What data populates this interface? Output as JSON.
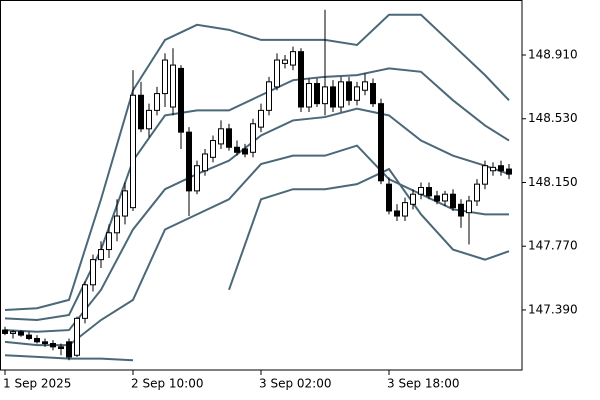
{
  "chart_data": {
    "type": "candlestick",
    "categories": [
      "1 Sep 2025",
      null,
      null,
      null,
      null,
      null,
      null,
      null,
      null,
      null,
      null,
      null,
      null,
      null,
      null,
      null,
      "2 Sep 10:00",
      null,
      null,
      null,
      null,
      null,
      null,
      null,
      null,
      null,
      null,
      null,
      null,
      null,
      null,
      null,
      "3 Sep 02:00",
      null,
      null,
      null,
      null,
      null,
      null,
      null,
      null,
      null,
      null,
      null,
      null,
      null,
      null,
      null,
      "3 Sep 18:00",
      null,
      null,
      null,
      null,
      null,
      null,
      null,
      null,
      null,
      null,
      null,
      null,
      null,
      null,
      null
    ],
    "open": [
      147.27,
      147.25,
      147.26,
      147.24,
      147.22,
      147.2,
      147.19,
      147.17,
      147.2,
      147.12,
      147.34,
      147.54,
      147.69,
      147.75,
      147.85,
      147.95,
      148.0,
      148.67,
      148.47,
      148.58,
      148.68,
      148.6,
      148.83,
      148.45,
      148.1,
      148.22,
      148.3,
      148.38,
      148.47,
      148.36,
      148.35,
      148.33,
      148.48,
      148.58,
      148.72,
      148.86,
      148.85,
      148.93,
      148.6,
      148.74,
      148.62,
      148.72,
      148.6,
      148.75,
      148.64,
      148.7,
      148.74,
      148.62,
      148.14,
      147.98,
      147.95,
      148.02,
      148.08,
      148.12,
      148.07,
      148.04,
      148.08,
      148.02,
      147.97,
      148.04,
      148.14,
      148.22,
      148.25,
      148.23
    ],
    "high": [
      147.29,
      147.27,
      147.27,
      147.26,
      147.24,
      147.22,
      147.21,
      147.19,
      147.22,
      147.35,
      147.56,
      147.72,
      147.8,
      147.9,
      148.05,
      148.15,
      148.82,
      148.75,
      148.62,
      148.72,
      148.92,
      148.95,
      148.85,
      148.48,
      148.28,
      148.35,
      148.43,
      148.52,
      148.5,
      148.4,
      148.38,
      148.53,
      148.62,
      148.78,
      148.92,
      148.91,
      148.96,
      148.95,
      148.77,
      148.77,
      149.18,
      148.76,
      148.78,
      148.78,
      148.75,
      148.8,
      148.77,
      148.65,
      148.18,
      148.02,
      148.06,
      148.11,
      148.15,
      148.15,
      148.1,
      148.1,
      148.11,
      148.05,
      148.07,
      148.17,
      148.28,
      148.27,
      148.28,
      148.26
    ],
    "low": [
      147.24,
      147.22,
      147.23,
      147.21,
      147.19,
      147.17,
      147.15,
      147.12,
      147.09,
      147.11,
      147.31,
      147.5,
      147.64,
      147.7,
      147.8,
      147.9,
      147.98,
      148.45,
      148.42,
      148.55,
      148.6,
      148.55,
      148.35,
      147.95,
      148.08,
      148.19,
      148.27,
      148.35,
      148.34,
      148.31,
      148.3,
      148.3,
      148.45,
      148.55,
      148.7,
      148.83,
      148.82,
      148.57,
      148.57,
      148.6,
      148.55,
      148.57,
      148.57,
      148.61,
      148.61,
      148.67,
      148.6,
      148.14,
      147.96,
      147.92,
      147.92,
      147.99,
      148.05,
      148.05,
      148.02,
      148.01,
      147.98,
      147.88,
      147.78,
      148.01,
      148.11,
      148.19,
      148.19,
      148.17
    ],
    "close": [
      147.25,
      147.26,
      147.24,
      147.22,
      147.2,
      147.19,
      147.17,
      147.16,
      147.11,
      147.34,
      147.54,
      147.69,
      147.75,
      147.85,
      147.95,
      148.1,
      148.67,
      148.47,
      148.58,
      148.68,
      148.88,
      148.85,
      148.45,
      148.1,
      148.25,
      148.32,
      148.4,
      148.47,
      148.36,
      148.33,
      148.32,
      148.5,
      148.58,
      148.75,
      148.88,
      148.88,
      148.93,
      148.6,
      148.74,
      148.62,
      148.72,
      148.6,
      148.75,
      148.64,
      148.72,
      148.75,
      148.62,
      148.16,
      147.98,
      147.95,
      148.03,
      148.08,
      148.12,
      148.07,
      148.04,
      148.08,
      148.0,
      147.95,
      148.04,
      148.14,
      148.25,
      148.24,
      148.22,
      148.2
    ],
    "bands": [
      {
        "color": "#4a6878",
        "x": [
          0,
          4,
          8,
          12,
          16,
          20,
          24,
          28,
          32,
          36,
          40,
          44,
          48,
          52,
          56,
          60,
          63
        ],
        "values": [
          147.39,
          147.4,
          147.45,
          148.05,
          148.7,
          149.0,
          149.09,
          149.06,
          149.0,
          149.0,
          149.0,
          148.97,
          149.15,
          149.15,
          148.97,
          148.79,
          148.64
        ]
      },
      {
        "color": "#4a6878",
        "x": [
          0,
          4,
          8,
          12,
          16,
          20,
          24,
          28,
          32,
          36,
          40,
          44,
          48,
          52,
          56,
          60,
          63
        ],
        "values": [
          147.34,
          147.33,
          147.36,
          147.75,
          148.28,
          148.55,
          148.58,
          148.58,
          148.67,
          148.76,
          148.78,
          148.79,
          148.83,
          148.81,
          148.64,
          148.49,
          148.4
        ]
      },
      {
        "color": "#4a6878",
        "x": [
          0,
          4,
          8,
          12,
          16,
          20,
          24,
          28,
          32,
          36,
          40,
          44,
          48,
          52,
          56,
          60,
          63
        ],
        "values": [
          147.27,
          147.26,
          147.27,
          147.51,
          147.87,
          148.11,
          148.2,
          148.28,
          148.43,
          148.52,
          148.54,
          148.59,
          148.55,
          148.4,
          148.31,
          148.25,
          148.2
        ]
      },
      {
        "color": "#4a6878",
        "x": [
          0,
          4,
          8,
          12,
          16,
          20,
          24,
          28,
          32,
          36,
          40,
          44,
          48,
          52,
          56,
          60,
          63
        ],
        "values": [
          147.2,
          147.18,
          147.18,
          147.33,
          147.45,
          147.87,
          147.96,
          148.05,
          148.26,
          148.31,
          148.31,
          148.37,
          148.17,
          148.08,
          147.99,
          147.96,
          147.96
        ]
      },
      {
        "color": "#4a6878",
        "x": [
          0,
          4,
          8,
          12,
          16,
          20,
          24,
          28,
          32,
          36,
          40,
          44,
          48,
          52,
          56,
          60,
          63
        ],
        "values": [
          147.12,
          147.11,
          147.1,
          147.1,
          147.09,
          null,
          null,
          147.51,
          148.05,
          148.11,
          148.11,
          148.14,
          148.23,
          147.96,
          147.75,
          147.69,
          147.74
        ]
      }
    ],
    "ylim": [
      147.032,
      149.238
    ],
    "yticks": [
      {
        "value": 147.39,
        "label": "147.390"
      },
      {
        "value": 147.77,
        "label": "147.770"
      },
      {
        "value": 148.15,
        "label": "148.150"
      },
      {
        "value": 148.53,
        "label": "148.530"
      },
      {
        "value": 148.91,
        "label": "148.910"
      }
    ]
  }
}
